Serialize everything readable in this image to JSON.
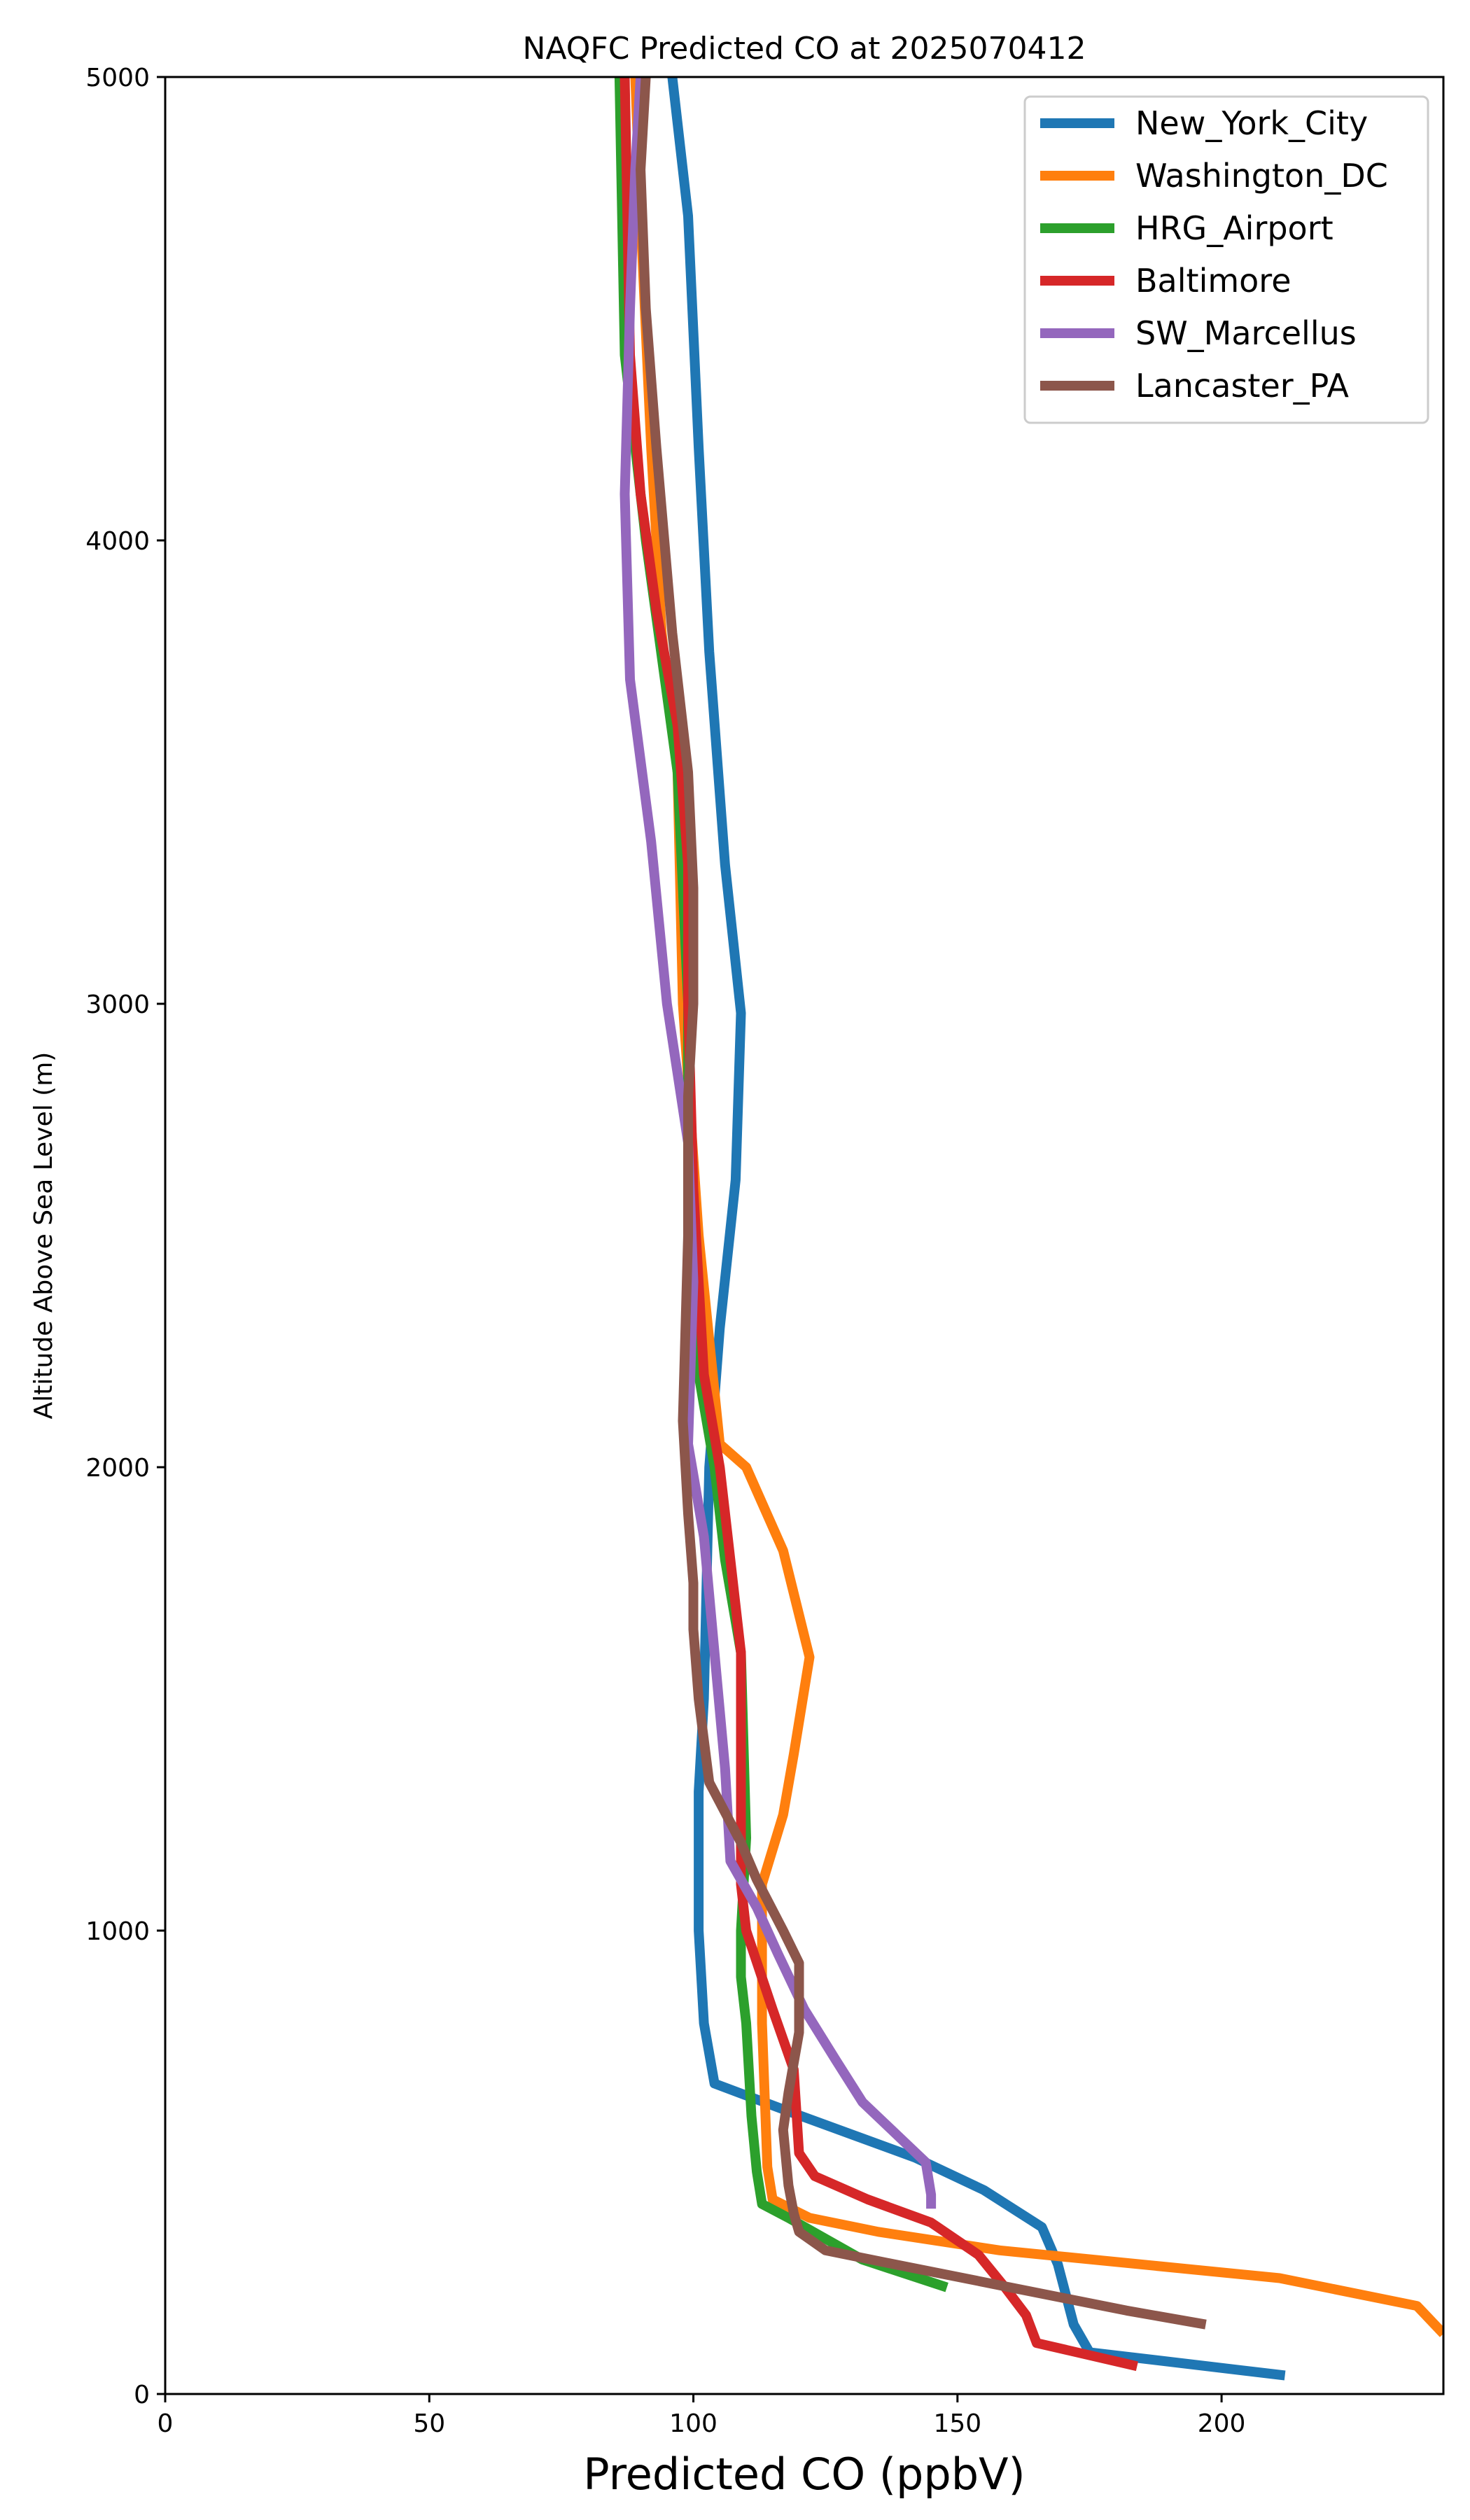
{
  "chart_data": {
    "type": "line",
    "title": "NAQFC Predicted CO at 2025070412",
    "xlabel": "Predicted CO (ppbV)",
    "ylabel": "Altitude Above Sea Level (m)",
    "xlim": [
      0,
      242
    ],
    "ylim": [
      0,
      5000
    ],
    "xticks": [
      0,
      50,
      100,
      150,
      200
    ],
    "yticks": [
      0,
      1000,
      2000,
      3000,
      4000,
      5000
    ],
    "legend_position": "top-right",
    "grid": false,
    "series": [
      {
        "name": "New_York_City",
        "color": "#1f77b4",
        "points": [
          [
            212,
            40
          ],
          [
            175,
            90
          ],
          [
            172,
            150
          ],
          [
            169,
            280
          ],
          [
            166,
            360
          ],
          [
            155,
            440
          ],
          [
            142,
            510
          ],
          [
            130,
            560
          ],
          [
            118,
            610
          ],
          [
            104,
            670
          ],
          [
            102,
            800
          ],
          [
            101,
            1000
          ],
          [
            101,
            1300
          ],
          [
            102,
            1500
          ],
          [
            103,
            2000
          ],
          [
            105,
            2300
          ],
          [
            108,
            2620
          ],
          [
            109,
            2980
          ],
          [
            106,
            3300
          ],
          [
            103,
            3760
          ],
          [
            101,
            4200
          ],
          [
            99,
            4700
          ],
          [
            96,
            5000
          ]
        ]
      },
      {
        "name": "Washington_DC",
        "color": "#ff7f0e",
        "points": [
          [
            242,
            130
          ],
          [
            237,
            190
          ],
          [
            211,
            250
          ],
          [
            158,
            310
          ],
          [
            135,
            350
          ],
          [
            122,
            380
          ],
          [
            115,
            420
          ],
          [
            114,
            490
          ],
          [
            113,
            800
          ],
          [
            113,
            1100
          ],
          [
            117,
            1250
          ],
          [
            119,
            1380
          ],
          [
            122,
            1590
          ],
          [
            117,
            1820
          ],
          [
            110,
            2000
          ],
          [
            105,
            2050
          ],
          [
            101,
            2500
          ],
          [
            98,
            3000
          ],
          [
            97,
            3500
          ],
          [
            94,
            3800
          ],
          [
            92,
            4200
          ],
          [
            90,
            4700
          ],
          [
            89,
            5000
          ]
        ]
      },
      {
        "name": "HRG_Airport",
        "color": "#2ca02c",
        "points": [
          [
            148,
            230
          ],
          [
            132,
            290
          ],
          [
            118,
            380
          ],
          [
            113,
            410
          ],
          [
            112,
            480
          ],
          [
            111,
            600
          ],
          [
            110,
            800
          ],
          [
            109,
            900
          ],
          [
            109,
            1000
          ],
          [
            110,
            1200
          ],
          [
            109,
            1600
          ],
          [
            106,
            1800
          ],
          [
            104,
            2000
          ],
          [
            101,
            2200
          ],
          [
            99,
            2500
          ],
          [
            99,
            3000
          ],
          [
            97,
            3500
          ],
          [
            91,
            4000
          ],
          [
            87,
            4400
          ],
          [
            86,
            5000
          ]
        ]
      },
      {
        "name": "Baltimore",
        "color": "#d62728",
        "points": [
          [
            184,
            60
          ],
          [
            165,
            110
          ],
          [
            163,
            170
          ],
          [
            159,
            230
          ],
          [
            154,
            300
          ],
          [
            145,
            370
          ],
          [
            133,
            420
          ],
          [
            123,
            470
          ],
          [
            120,
            520
          ],
          [
            119,
            700
          ],
          [
            115,
            830
          ],
          [
            110,
            1000
          ],
          [
            109,
            1100
          ],
          [
            109,
            1250
          ],
          [
            109,
            1600
          ],
          [
            107,
            1800
          ],
          [
            105,
            2000
          ],
          [
            102,
            2200
          ],
          [
            100,
            2600
          ],
          [
            99,
            3000
          ],
          [
            99,
            3300
          ],
          [
            97,
            3600
          ],
          [
            93,
            3850
          ],
          [
            90,
            4100
          ],
          [
            88,
            4400
          ],
          [
            87,
            5000
          ]
        ]
      },
      {
        "name": "SW_Marcellus",
        "color": "#9467bd",
        "points": [
          [
            145,
            400
          ],
          [
            145,
            430
          ],
          [
            144,
            500
          ],
          [
            132,
            630
          ],
          [
            127,
            720
          ],
          [
            121,
            830
          ],
          [
            116,
            950
          ],
          [
            112,
            1050
          ],
          [
            107,
            1150
          ],
          [
            106,
            1350
          ],
          [
            104,
            1600
          ],
          [
            102,
            1850
          ],
          [
            99,
            2050
          ],
          [
            100,
            2400
          ],
          [
            99,
            2700
          ],
          [
            95,
            3000
          ],
          [
            92,
            3350
          ],
          [
            88,
            3700
          ],
          [
            87,
            4100
          ],
          [
            88,
            4500
          ],
          [
            89,
            4800
          ],
          [
            90,
            5000
          ]
        ]
      },
      {
        "name": "Lancaster_PA",
        "color": "#8c564b",
        "points": [
          [
            197,
            150
          ],
          [
            182,
            180
          ],
          [
            160,
            230
          ],
          [
            138,
            280
          ],
          [
            125,
            310
          ],
          [
            120,
            350
          ],
          [
            119,
            390
          ],
          [
            118,
            450
          ],
          [
            117,
            570
          ],
          [
            118,
            650
          ],
          [
            120,
            780
          ],
          [
            120,
            930
          ],
          [
            117,
            1000
          ],
          [
            112,
            1110
          ],
          [
            109,
            1190
          ],
          [
            103,
            1320
          ],
          [
            101,
            1500
          ],
          [
            100,
            1650
          ],
          [
            100,
            1750
          ],
          [
            99,
            1900
          ],
          [
            98,
            2100
          ],
          [
            99,
            2500
          ],
          [
            99,
            2800
          ],
          [
            100,
            3000
          ],
          [
            100,
            3250
          ],
          [
            99,
            3500
          ],
          [
            96,
            3800
          ],
          [
            93,
            4200
          ],
          [
            91,
            4500
          ],
          [
            90,
            4800
          ],
          [
            91,
            5000
          ]
        ]
      }
    ]
  }
}
